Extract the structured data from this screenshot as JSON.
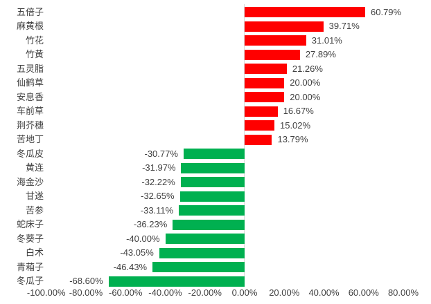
{
  "chart_data": {
    "type": "bar",
    "orientation": "horizontal",
    "title": "",
    "categories": [
      "五倍子",
      "麻黄根",
      "竹花",
      "竹黄",
      "五灵脂",
      "仙鹤草",
      "安息香",
      "车前草",
      "荆芥穗",
      "苦地丁",
      "冬瓜皮",
      "黄连",
      "海金沙",
      "甘遂",
      "苦参",
      "蛇床子",
      "冬葵子",
      "白术",
      "青葙子",
      "冬瓜子"
    ],
    "values": [
      60.79,
      39.71,
      31.01,
      27.89,
      21.26,
      20.0,
      20.0,
      16.67,
      15.02,
      13.79,
      -30.77,
      -31.97,
      -32.22,
      -32.65,
      -33.11,
      -36.23,
      -40.0,
      -43.05,
      -46.43,
      -68.6
    ],
    "value_labels": [
      "60.79%",
      "39.71%",
      "31.01%",
      "27.89%",
      "21.26%",
      "20.00%",
      "20.00%",
      "16.67%",
      "15.02%",
      "13.79%",
      "-30.77%",
      "-31.97%",
      "-32.22%",
      "-32.65%",
      "-33.11%",
      "-36.23%",
      "-40.00%",
      "-43.05%",
      "-46.43%",
      "-68.60%"
    ],
    "xlabel": "",
    "ylabel": "",
    "x_axis": {
      "min": -100,
      "max": 80,
      "tick_values": [
        -100,
        -80,
        -60,
        -40,
        -20,
        0,
        20,
        40,
        60,
        80
      ],
      "tick_labels": [
        "-100.00%",
        "-80.00%",
        "-60.00%",
        "-40.00%",
        "-20.00%",
        "0.00%",
        "20.00%",
        "40.00%",
        "60.00%",
        "80.00%"
      ]
    },
    "grid": false,
    "legend": false,
    "colors": {
      "positive_bar": "#FF0000",
      "negative_bar": "#00B050",
      "axis_line": "#D9D9D9",
      "label_text": "#404040"
    }
  }
}
